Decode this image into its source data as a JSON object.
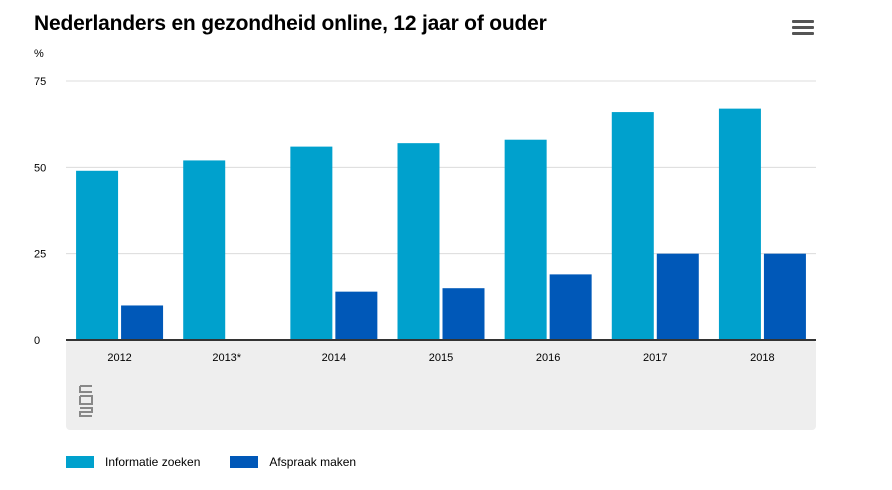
{
  "header": {
    "title": "Nederlanders en gezondheid online, 12 jaar of ouder",
    "menu_icon": "hamburger-menu-icon"
  },
  "logo_icon": "cbs-logo-icon",
  "chart_data": {
    "type": "bar",
    "title": "Nederlanders en gezondheid online, 12 jaar of ouder",
    "ylabel": "%",
    "xlabel": "",
    "categories": [
      "2012",
      "2013*",
      "2014",
      "2015",
      "2016",
      "2017",
      "2018"
    ],
    "series": [
      {
        "name": "Informatie zoeken",
        "color": "#00a1cd",
        "values": [
          49,
          52,
          56,
          57,
          58,
          66,
          67
        ]
      },
      {
        "name": "Afspraak maken",
        "color": "#0058b8",
        "values": [
          10,
          null,
          14,
          15,
          19,
          25,
          25
        ]
      }
    ],
    "ylim": [
      0,
      75
    ],
    "yticks": [
      0,
      25,
      50,
      75
    ],
    "grid": true,
    "legend_position": "bottom-left"
  }
}
